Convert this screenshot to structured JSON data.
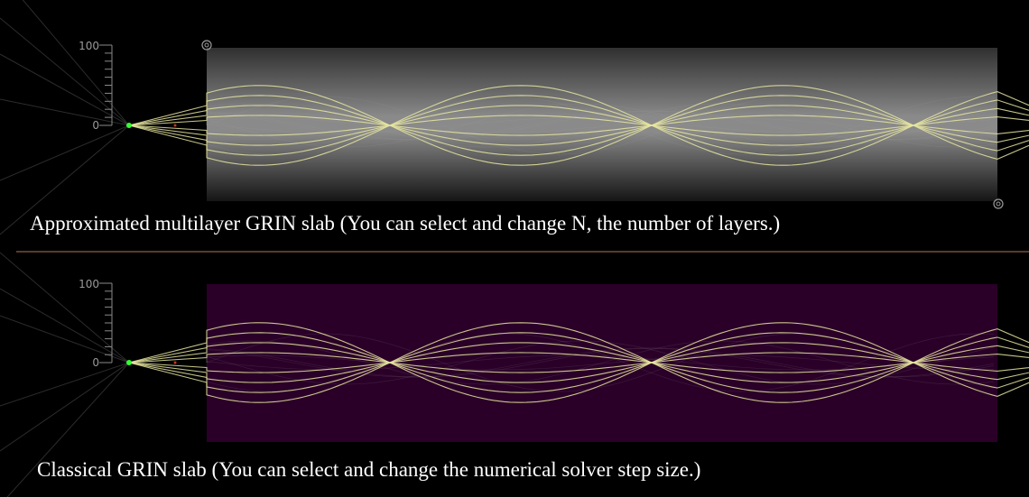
{
  "panels": [
    {
      "id": "multilayer",
      "caption": "Approximated multilayer GRIN slab (You can select and change N, the number of layers.)",
      "axis": {
        "tick_top": "100",
        "tick_zero": "0"
      },
      "slab_style": "gradient-gray",
      "has_resize_handles": true
    },
    {
      "id": "classical",
      "caption": "Classical GRIN slab (You can select and change the numerical solver step size.)",
      "axis": {
        "tick_top": "100",
        "tick_zero": "0"
      },
      "slab_style": "solid-purple",
      "has_resize_handles": false
    }
  ],
  "colors": {
    "background": "#000000",
    "ray": "#e8e6a0",
    "divider": "#5a3a2a",
    "source": "#33ff33",
    "focus_marker": "#cc3322",
    "slab_purple": "#2a0028"
  },
  "icons": {
    "resize_handle": "circle-target-icon"
  }
}
